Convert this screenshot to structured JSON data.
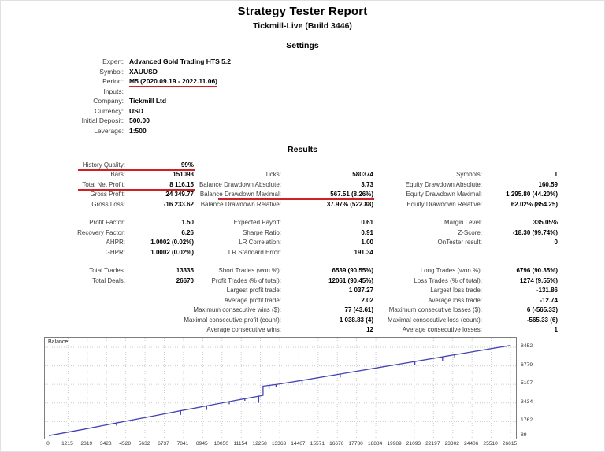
{
  "report": {
    "title": "Strategy Tester Report",
    "subtitle": "Tickmill-Live (Build 3446)"
  },
  "settings": {
    "heading": "Settings",
    "rows": [
      {
        "label": "Expert:",
        "value": "Advanced Gold Trading HTS 5.2"
      },
      {
        "label": "Symbol:",
        "value": "XAUUSD"
      },
      {
        "label": "Period:",
        "value": "M5 (2020.09.19 - 2022.11.06)",
        "red": true
      },
      {
        "label": "Inputs:",
        "value": ""
      },
      {
        "label": "Company:",
        "value": "Tickmill Ltd"
      },
      {
        "label": "Currency:",
        "value": "USD"
      },
      {
        "label": "Initial Deposit:",
        "value": "500.00"
      },
      {
        "label": "Leverage:",
        "value": "1:500"
      }
    ]
  },
  "results": {
    "heading": "Results",
    "blocks": [
      {
        "rows": [
          [
            "History Quality:",
            "99%",
            "",
            "",
            "",
            ""
          ],
          [
            "Bars:",
            "151093",
            "Ticks:",
            "580374",
            "Symbols:",
            "1"
          ],
          [
            "Total Net Profit:",
            "8 116.15",
            "Balance Drawdown Absolute:",
            "3.73",
            "Equity Drawdown Absolute:",
            "160.59"
          ],
          [
            "Gross Profit:",
            "24 349.77",
            "Balance Drawdown Maximal:",
            "567.51 (8.26%)",
            "Equity Drawdown Maximal:",
            "1 295.80 (44.20%)"
          ],
          [
            "Gross Loss:",
            "-16 233.62",
            "Balance Drawdown Relative:",
            "37.97% (522.88)",
            "Equity Drawdown Relative:",
            "62.02% (854.25)"
          ]
        ]
      },
      {
        "rows": [
          [
            "Profit Factor:",
            "1.50",
            "Expected Payoff:",
            "0.61",
            "Margin Level:",
            "335.05%"
          ],
          [
            "Recovery Factor:",
            "6.26",
            "Sharpe Ratio:",
            "0.91",
            "Z-Score:",
            "-18.30 (99.74%)"
          ],
          [
            "AHPR:",
            "1.0002 (0.02%)",
            "LR Correlation:",
            "1.00",
            "OnTester result:",
            "0"
          ],
          [
            "GHPR:",
            "1.0002 (0.02%)",
            "LR Standard Error:",
            "191.34",
            "",
            ""
          ]
        ]
      },
      {
        "rows": [
          [
            "Total Trades:",
            "13335",
            "Short Trades (won %):",
            "6539 (90.55%)",
            "Long Trades (won %):",
            "6796 (90.35%)"
          ],
          [
            "Total Deals:",
            "26670",
            "Profit Trades (% of total):",
            "12061 (90.45%)",
            "Loss Trades (% of total):",
            "1274 (9.55%)"
          ],
          [
            "",
            "",
            "Largest profit trade:",
            "1 037.27",
            "Largest loss trade:",
            "-131.86"
          ],
          [
            "",
            "",
            "Average profit trade:",
            "2.02",
            "Average loss trade:",
            "-12.74"
          ],
          [
            "",
            "",
            "Maximum consecutive wins ($):",
            "77 (43.61)",
            "Maximum consecutive losses ($):",
            "6 (-565.33)"
          ],
          [
            "",
            "",
            "Maximal consecutive profit (count):",
            "1 038.83 (4)",
            "Maximal consecutive loss (count):",
            "-565.33 (6)"
          ],
          [
            "",
            "",
            "Average consecutive wins:",
            "12",
            "Average consecutive losses:",
            "1"
          ]
        ]
      }
    ],
    "red_rows": [
      {
        "block": 0,
        "row": 0,
        "col": 0
      },
      {
        "block": 0,
        "row": 2,
        "col": 0
      },
      {
        "block": 0,
        "row": 3,
        "col": 1
      }
    ],
    "accent_red": "#cf2026"
  },
  "chart_data": {
    "type": "line",
    "title": "Balance",
    "legend": [
      "Balance"
    ],
    "legend_position": "top-left-inside",
    "grid": true,
    "line_color": "#4343b4",
    "x_ticks": [
      "0",
      "1215",
      "2319",
      "3423",
      "4528",
      "5632",
      "6737",
      "7841",
      "8945",
      "10050",
      "11154",
      "12258",
      "13363",
      "14467",
      "15571",
      "16676",
      "17780",
      "18884",
      "19989",
      "21093",
      "22197",
      "23302",
      "24406",
      "25510",
      "26615"
    ],
    "y_ticks": [
      89,
      1762,
      3434,
      5107,
      6779,
      8452
    ],
    "x_range": [
      0,
      26615
    ],
    "y_range": [
      89,
      9300
    ],
    "series": [
      {
        "name": "Balance",
        "points": [
          [
            0,
            500
          ],
          [
            2000,
            1070
          ],
          [
            3900,
            1640
          ],
          [
            3900,
            1400
          ],
          [
            3900,
            1640
          ],
          [
            6000,
            2260
          ],
          [
            7600,
            2740
          ],
          [
            7600,
            2360
          ],
          [
            7600,
            2740
          ],
          [
            9100,
            3180
          ],
          [
            9100,
            2820
          ],
          [
            9100,
            3180
          ],
          [
            10400,
            3560
          ],
          [
            10400,
            3320
          ],
          [
            10400,
            3560
          ],
          [
            11300,
            3820
          ],
          [
            11300,
            3630
          ],
          [
            11300,
            3820
          ],
          [
            12100,
            4050
          ],
          [
            12100,
            3450
          ],
          [
            12100,
            4050
          ],
          [
            12350,
            4120
          ],
          [
            12350,
            4950
          ],
          [
            12700,
            5010
          ],
          [
            12700,
            4720
          ],
          [
            12700,
            5010
          ],
          [
            13100,
            5090
          ],
          [
            13100,
            4910
          ],
          [
            13100,
            5090
          ],
          [
            14600,
            5470
          ],
          [
            14600,
            5160
          ],
          [
            14600,
            5470
          ],
          [
            16800,
            6040
          ],
          [
            16800,
            5730
          ],
          [
            16800,
            6040
          ],
          [
            19000,
            6620
          ],
          [
            21100,
            7170
          ],
          [
            21100,
            6890
          ],
          [
            21100,
            7170
          ],
          [
            22700,
            7590
          ],
          [
            22700,
            7210
          ],
          [
            22700,
            7590
          ],
          [
            23400,
            7780
          ],
          [
            23400,
            7510
          ],
          [
            23400,
            7780
          ],
          [
            26615,
            8616
          ]
        ]
      }
    ]
  }
}
